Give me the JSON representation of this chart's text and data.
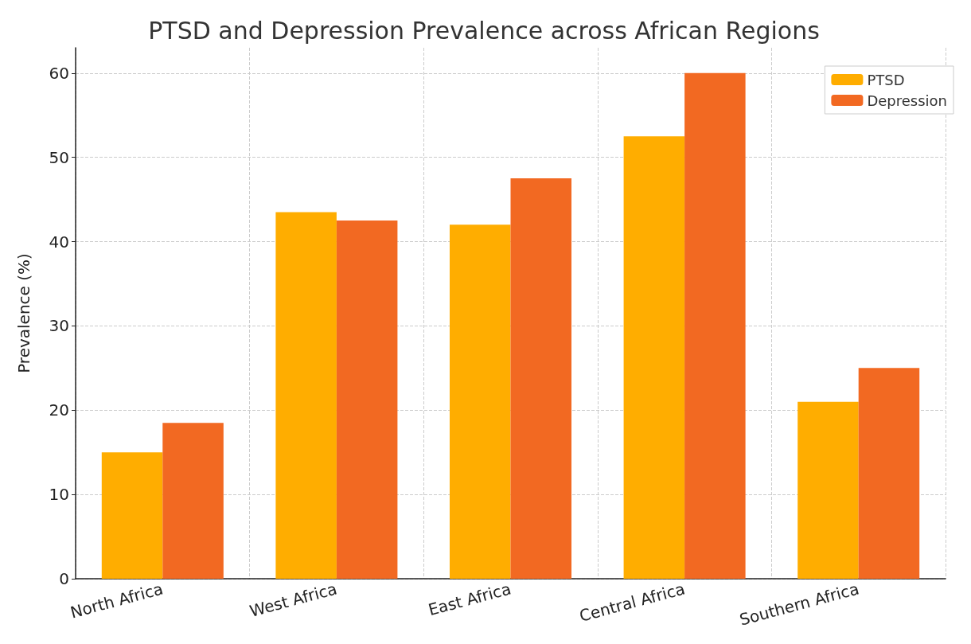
{
  "chart_data": {
    "type": "bar",
    "title": "PTSD and Depression Prevalence across African Regions",
    "ylabel": "Prevalence (%)",
    "categories": [
      "North Africa",
      "West Africa",
      "East Africa",
      "Central Africa",
      "Southern Africa"
    ],
    "series": [
      {
        "name": "PTSD",
        "color": "#ffad00",
        "values": [
          15,
          43.5,
          42,
          52.5,
          21
        ]
      },
      {
        "name": "Depression",
        "color": "#f26922",
        "values": [
          18.5,
          42.5,
          47.5,
          60,
          25
        ]
      }
    ],
    "ylim": [
      0,
      63
    ],
    "yticks": [
      0,
      10,
      20,
      30,
      40,
      50,
      60
    ],
    "grid": true,
    "legend": "top right"
  }
}
